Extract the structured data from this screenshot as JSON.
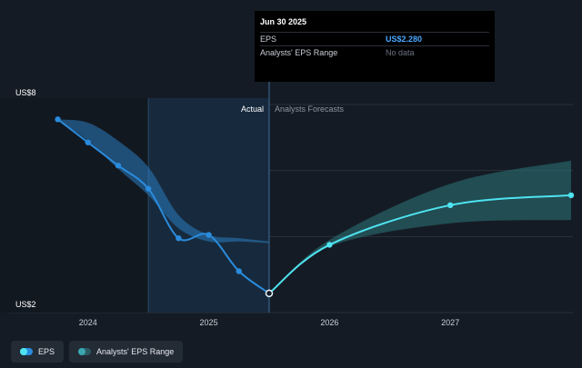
{
  "tooltip": {
    "date": "Jun 30 2025",
    "rows": [
      {
        "label": "EPS",
        "value": "US$2.280"
      },
      {
        "label": "Analysts' EPS Range",
        "value": "No data"
      }
    ]
  },
  "labels": {
    "actual": "Actual",
    "forecast": "Analysts Forecasts"
  },
  "legend": [
    {
      "label": "EPS"
    },
    {
      "label": "Analysts' EPS Range"
    }
  ],
  "colors": {
    "background": "#151b24",
    "eps_actual": "#2a8bdc",
    "eps_forecast": "#4fe3f0",
    "range_actual": "#2a7bbf",
    "range_forecast": "#2a6f73",
    "highlight": "#1b3a55"
  },
  "chart_data": {
    "type": "line",
    "title": "",
    "ylabel": "",
    "xlabel": "",
    "yticks": [
      {
        "value": 8,
        "label": "US$8"
      },
      {
        "value": 2,
        "label": "US$2"
      }
    ],
    "xticks": [
      {
        "value": 2024.0,
        "label": "2024"
      },
      {
        "value": 2025.0,
        "label": "2025"
      },
      {
        "value": 2026.0,
        "label": "2026"
      },
      {
        "value": 2027.0,
        "label": "2027"
      }
    ],
    "xlim": [
      2023.55,
      2028.0
    ],
    "ylim": [
      2,
      8
    ],
    "grid": "horizontal",
    "highlight_range": [
      2024.5,
      2025.5
    ],
    "actual_end": 2025.5,
    "series": [
      {
        "name": "EPS",
        "segment": "actual",
        "points": [
          {
            "x": 2023.75,
            "y": 7.55
          },
          {
            "x": 2024.0,
            "y": 6.85
          },
          {
            "x": 2024.25,
            "y": 6.15
          },
          {
            "x": 2024.5,
            "y": 5.45
          },
          {
            "x": 2024.75,
            "y": 3.95
          },
          {
            "x": 2025.0,
            "y": 4.05
          },
          {
            "x": 2025.25,
            "y": 2.95
          },
          {
            "x": 2025.5,
            "y": 2.28
          }
        ]
      },
      {
        "name": "EPS",
        "segment": "forecast",
        "points": [
          {
            "x": 2025.5,
            "y": 2.28
          },
          {
            "x": 2026.0,
            "y": 3.75
          },
          {
            "x": 2027.0,
            "y": 4.95
          },
          {
            "x": 2028.0,
            "y": 5.25
          }
        ]
      }
    ],
    "ranges": [
      {
        "name": "Analysts' EPS Range",
        "segment": "actual",
        "points": [
          {
            "x": 2023.75,
            "low": 7.55,
            "high": 7.55
          },
          {
            "x": 2024.0,
            "low": 6.9,
            "high": 7.45
          },
          {
            "x": 2024.25,
            "low": 6.05,
            "high": 6.9
          },
          {
            "x": 2024.5,
            "low": 5.25,
            "high": 6.1
          },
          {
            "x": 2024.75,
            "low": 4.25,
            "high": 4.65
          },
          {
            "x": 2025.0,
            "low": 3.85,
            "high": 4.05
          },
          {
            "x": 2025.25,
            "low": 3.85,
            "high": 3.95
          },
          {
            "x": 2025.5,
            "low": 3.8,
            "high": 3.85
          }
        ]
      },
      {
        "name": "Analysts' EPS Range",
        "segment": "forecast",
        "points": [
          {
            "x": 2025.5,
            "low": 2.28,
            "high": 2.28
          },
          {
            "x": 2026.0,
            "low": 3.7,
            "high": 3.9
          },
          {
            "x": 2027.0,
            "low": 4.4,
            "high": 5.6
          },
          {
            "x": 2028.0,
            "low": 4.5,
            "high": 6.3
          }
        ]
      }
    ]
  }
}
